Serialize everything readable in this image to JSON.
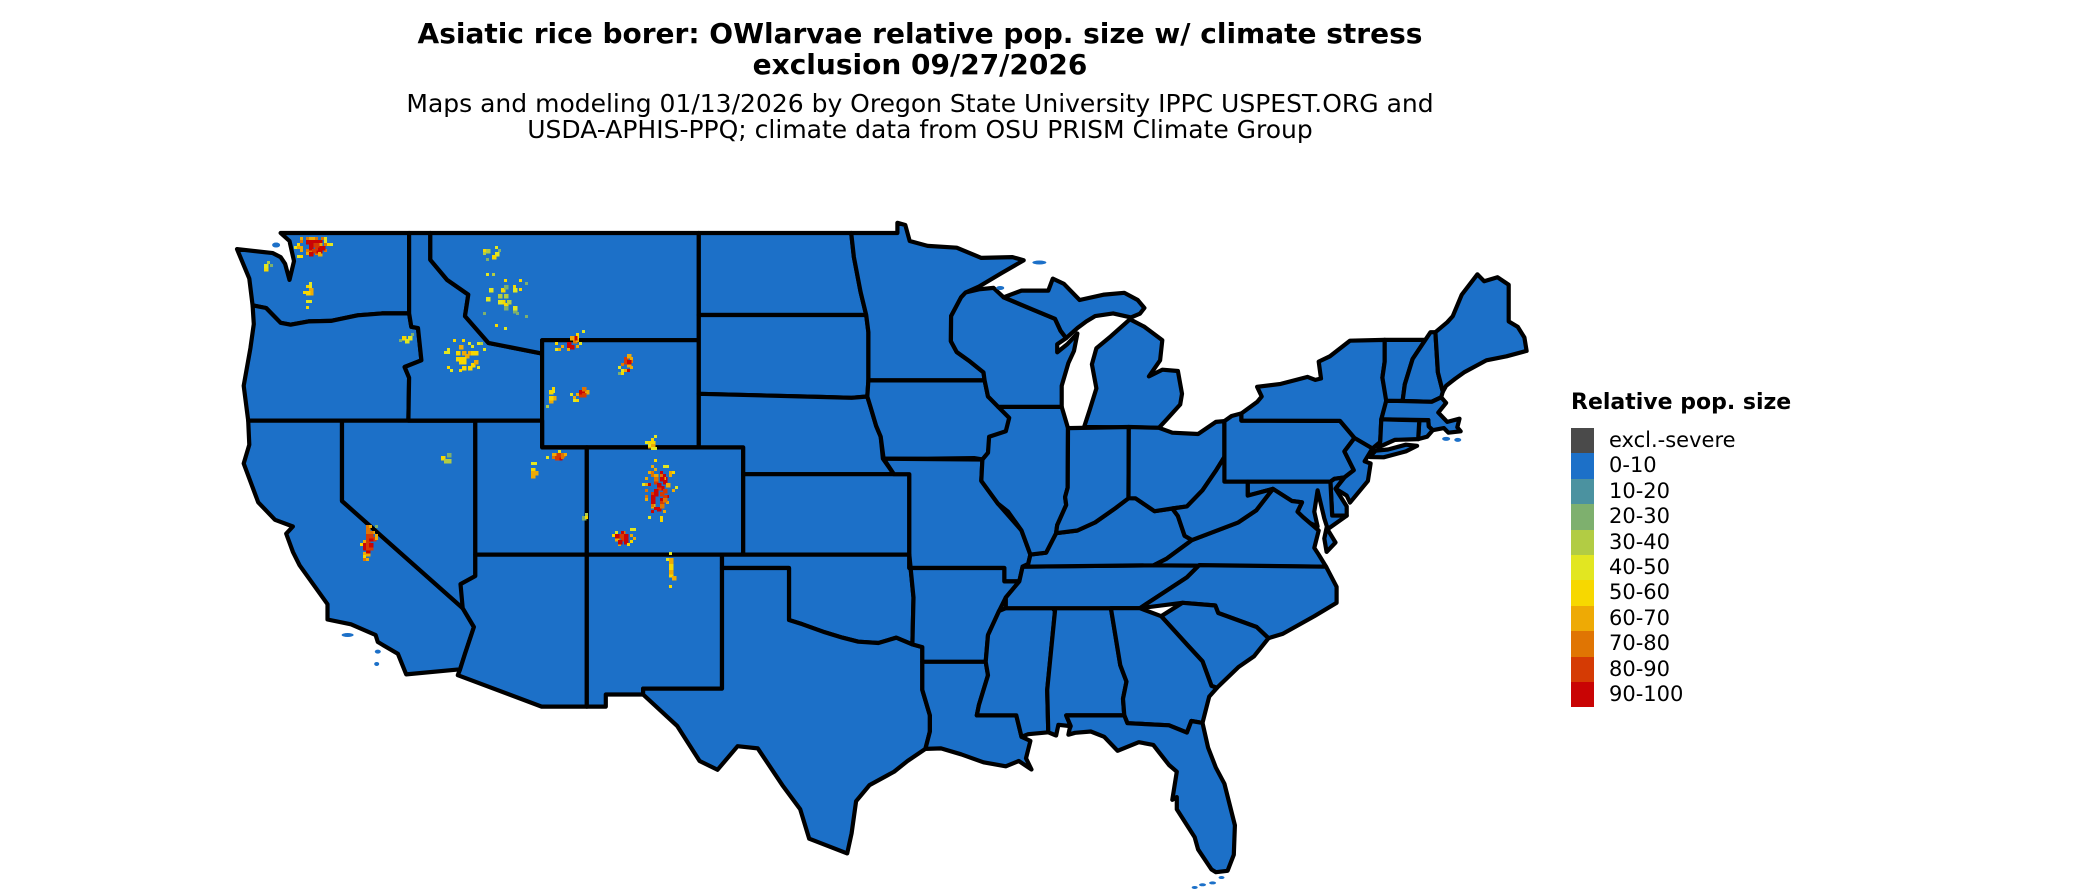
{
  "title": {
    "line1": "Asiatic rice borer: OWlarvae relative pop. size w/ climate stress",
    "line2": "exclusion 09/27/2026"
  },
  "subtitle": {
    "line1": "Maps and modeling 01/13/2026 by Oregon State University IPPC USPEST.ORG and",
    "line2": "USDA-APHIS-PPQ; climate data from OSU PRISM Climate Group"
  },
  "legend": {
    "title": "Relative pop. size",
    "items": [
      {
        "label": "excl.-severe",
        "color": "#4a4a4a"
      },
      {
        "label": "0-10",
        "color": "#1c70c8"
      },
      {
        "label": "10-20",
        "color": "#4b92a0"
      },
      {
        "label": "20-30",
        "color": "#7eb06e"
      },
      {
        "label": "30-40",
        "color": "#b2cc44"
      },
      {
        "label": "40-50",
        "color": "#e2e621"
      },
      {
        "label": "50-60",
        "color": "#f7d800"
      },
      {
        "label": "60-70",
        "color": "#eeaa05"
      },
      {
        "label": "70-80",
        "color": "#e07503"
      },
      {
        "label": "80-90",
        "color": "#d53b04"
      },
      {
        "label": "90-100",
        "color": "#c90404"
      }
    ]
  },
  "map": {
    "land_color": "#1c70c8",
    "border_color": "#000000",
    "background_color": "#ffffff",
    "dominant_class": "0-10",
    "hotspots": [
      {
        "name": "north-cascades-wa",
        "lon": -121.35,
        "lat": 48.55,
        "dlon": 0.8,
        "dlat": 0.5,
        "n": 70,
        "tilt": 0.3,
        "intensity": "high"
      },
      {
        "name": "south-cascades-wa",
        "lon": -121.55,
        "lat": 46.75,
        "dlon": 0.25,
        "dlat": 0.5,
        "n": 10,
        "tilt": 0.0,
        "intensity": "medium"
      },
      {
        "name": "olympic-mountains-wa",
        "lon": -123.45,
        "lat": 47.85,
        "dlon": 0.3,
        "dlat": 0.2,
        "n": 6,
        "tilt": 0.0,
        "intensity": "low"
      },
      {
        "name": "wallowa-mountains-or",
        "lon": -117.25,
        "lat": 45.2,
        "dlon": 0.3,
        "dlat": 0.25,
        "n": 6,
        "tilt": 0.0,
        "intensity": "low"
      },
      {
        "name": "central-idaho-rockies",
        "lon": -114.6,
        "lat": 44.4,
        "dlon": 1.0,
        "dlat": 0.8,
        "n": 35,
        "tilt": 0.3,
        "intensity": "medium"
      },
      {
        "name": "western-montana",
        "lon": -112.9,
        "lat": 46.6,
        "dlon": 1.5,
        "dlat": 1.2,
        "n": 26,
        "tilt": 0.0,
        "intensity": "low"
      },
      {
        "name": "glacier-mt",
        "lon": -113.4,
        "lat": 48.3,
        "dlon": 0.45,
        "dlat": 0.4,
        "n": 9,
        "tilt": 0.5,
        "intensity": "low"
      },
      {
        "name": "absaroka-beartooth",
        "lon": -109.95,
        "lat": 45.0,
        "dlon": 0.65,
        "dlat": 0.4,
        "n": 20,
        "tilt": 0.6,
        "intensity": "high"
      },
      {
        "name": "bighorn-mountains",
        "lon": -107.35,
        "lat": 44.25,
        "dlon": 0.3,
        "dlat": 0.55,
        "n": 20,
        "tilt": 0.5,
        "intensity": "high"
      },
      {
        "name": "wind-river-range",
        "lon": -109.35,
        "lat": 43.1,
        "dlon": 0.4,
        "dlat": 0.35,
        "n": 18,
        "tilt": 0.6,
        "intensity": "high"
      },
      {
        "name": "wyoming-range",
        "lon": -110.7,
        "lat": 42.9,
        "dlon": 0.2,
        "dlat": 0.4,
        "n": 7,
        "tilt": 0.0,
        "intensity": "medium"
      },
      {
        "name": "uinta-mountains",
        "lon": -110.45,
        "lat": 40.75,
        "dlon": 0.55,
        "dlat": 0.16,
        "n": 18,
        "tilt": 0.0,
        "intensity": "high"
      },
      {
        "name": "wasatch-range",
        "lon": -111.5,
        "lat": 40.1,
        "dlon": 0.15,
        "dlat": 0.5,
        "n": 8,
        "tilt": 0.0,
        "intensity": "medium"
      },
      {
        "name": "medicine-bow-laramie",
        "lon": -106.1,
        "lat": 41.2,
        "dlon": 0.45,
        "dlat": 0.3,
        "n": 10,
        "tilt": 0.0,
        "intensity": "medium"
      },
      {
        "name": "colorado-front-range",
        "lon": -105.9,
        "lat": 39.4,
        "dlon": 0.8,
        "dlat": 1.2,
        "n": 70,
        "tilt": 0.2,
        "intensity": "high"
      },
      {
        "name": "san-juan-mountains",
        "lon": -107.5,
        "lat": 37.7,
        "dlon": 0.6,
        "dlat": 0.35,
        "n": 24,
        "tilt": 0.0,
        "intensity": "high"
      },
      {
        "name": "sangre-de-cristo-nm",
        "lon": -105.35,
        "lat": 36.5,
        "dlon": 0.25,
        "dlat": 0.7,
        "n": 12,
        "tilt": 0.0,
        "intensity": "medium"
      },
      {
        "name": "sierra-nevada-ca",
        "lon": -118.85,
        "lat": 37.5,
        "dlon": 0.4,
        "dlat": 1.0,
        "n": 36,
        "tilt": 0.5,
        "intensity": "high"
      },
      {
        "name": "la-sal-abajo-ut",
        "lon": -109.3,
        "lat": 38.4,
        "dlon": 0.25,
        "dlat": 0.25,
        "n": 4,
        "tilt": 0.0,
        "intensity": "low"
      },
      {
        "name": "ne-nevada-ranges",
        "lon": -115.5,
        "lat": 40.6,
        "dlon": 0.5,
        "dlat": 0.5,
        "n": 4,
        "tilt": 0.0,
        "intensity": "low"
      }
    ]
  }
}
